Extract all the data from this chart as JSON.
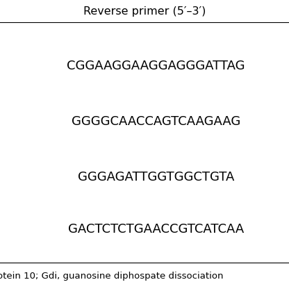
{
  "header": "Reverse primer (5′–3′)",
  "sequences": [
    "CGGAAGGAAGGAGGGATTAG",
    "GGGGCAACCAGTCAAGAAG",
    "GGGAGATTGGTGGCTGTA",
    "GACTCTCTGAACCGTCATCAA"
  ],
  "footer": "otein 10; Gdi, guanosine diphospate dissociation",
  "bg_color": "#ffffff",
  "text_color": "#000000",
  "header_fontsize": 11.5,
  "seq_fontsize": 13,
  "footer_fontsize": 9.5,
  "fig_width": 4.16,
  "fig_height": 4.16,
  "dpi": 100
}
